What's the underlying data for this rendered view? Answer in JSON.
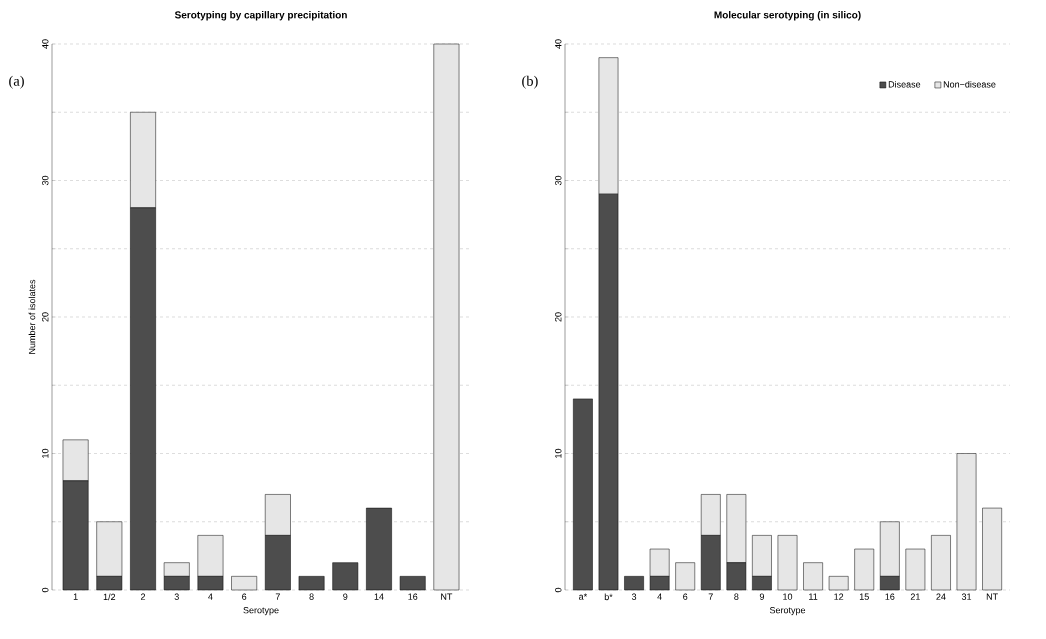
{
  "chart_data": [
    {
      "type": "bar",
      "title": "Serotyping by capillary precipitation",
      "xlabel": "Serotype",
      "ylabel": "Number of isolates",
      "annotations": [
        "(a)"
      ],
      "stacked": true,
      "grid": "y",
      "legend": false,
      "categories": [
        "1",
        "1/2",
        "2",
        "3",
        "4",
        "6",
        "7",
        "8",
        "9",
        "14",
        "16",
        "NT"
      ],
      "series": [
        {
          "color": "#4d4d4d",
          "values": [
            8,
            1,
            28,
            1,
            1,
            0,
            4,
            1,
            2,
            6,
            1,
            0
          ]
        },
        {
          "color": "#e6e6e6",
          "values": [
            3,
            4,
            7,
            1,
            3,
            1,
            3,
            0,
            0,
            0,
            0,
            40
          ]
        }
      ],
      "ylim": [
        0,
        40
      ],
      "yticks": [
        0,
        {
          "value": 5,
          "label": null
        },
        10,
        {
          "value": 15,
          "label": null
        },
        20,
        {
          "value": 25,
          "label": null
        },
        30,
        {
          "value": 35,
          "label": null
        },
        40
      ]
    },
    {
      "type": "bar",
      "title": "Molecular serotyping (in silico)",
      "xlabel": "Serotype",
      "annotations": [
        "(b)"
      ],
      "stacked": true,
      "grid": "y",
      "legend": "top right",
      "categories": [
        "a*",
        "b*",
        "3",
        "4",
        "6",
        "7",
        "8",
        "9",
        "10",
        "11",
        "12",
        "15",
        "16",
        "21",
        "24",
        "31",
        "NT"
      ],
      "series": [
        {
          "name": "Disease",
          "color": "#4d4d4d",
          "values": [
            14,
            29,
            1,
            1,
            0,
            4,
            2,
            1,
            0,
            0,
            0,
            0,
            1,
            0,
            0,
            0,
            0
          ]
        },
        {
          "name": "Non−disease",
          "color": "#e6e6e6",
          "values": [
            0,
            10,
            0,
            2,
            2,
            3,
            5,
            3,
            4,
            2,
            1,
            3,
            4,
            3,
            4,
            10,
            6
          ]
        }
      ],
      "ylim": [
        0,
        40
      ],
      "yticks": [
        0,
        {
          "value": 5,
          "label": null
        },
        10,
        {
          "value": 15,
          "label": null
        },
        20,
        {
          "value": 25,
          "label": null
        },
        30,
        {
          "value": 35,
          "label": null
        },
        40
      ]
    }
  ]
}
